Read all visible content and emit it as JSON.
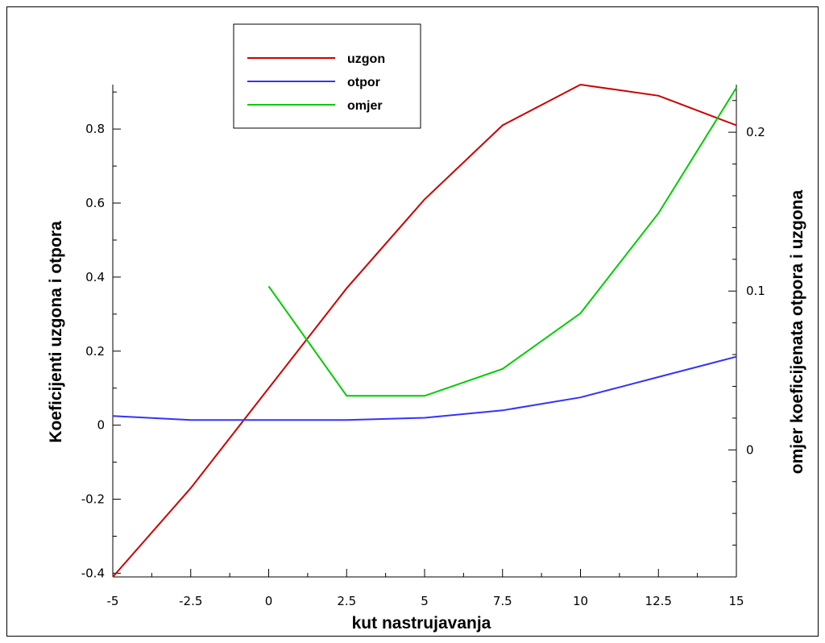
{
  "chart_data": {
    "type": "line",
    "xlabel": "kut nastrujavanja",
    "ylabel": "Koeficijenti uzgona i otpora",
    "y2label": "omjer koeficijenata otpora i uzgona",
    "xlim": [
      -5,
      15
    ],
    "ylim": [
      -0.41,
      0.92
    ],
    "y2lim": [
      -0.08,
      0.23
    ],
    "xticks": [
      -5,
      -2.5,
      0,
      2.5,
      5,
      7.5,
      10,
      12.5,
      15
    ],
    "xtick_labels": [
      "-5",
      "-2.5",
      "0",
      "2.5",
      "5",
      "7.5",
      "10",
      "12.5",
      "15"
    ],
    "yticks": [
      -0.4,
      -0.2,
      0,
      0.2,
      0.4,
      0.6,
      0.8
    ],
    "ytick_labels": [
      "-0.4",
      "-0.2",
      "0",
      "0.2",
      "0.4",
      "0.6",
      "0.8"
    ],
    "y2ticks": [
      0,
      0.1,
      0.2
    ],
    "y2tick_labels": [
      "0",
      "0.1",
      "0.2"
    ],
    "legend_position": "top-left",
    "grid": false,
    "series": [
      {
        "name": "uzgon",
        "color": "#cc0000",
        "axis": "left",
        "x": [
          -5,
          -2.5,
          0,
          2.5,
          5,
          7.5,
          10,
          12.5,
          15
        ],
        "values": [
          -0.41,
          -0.17,
          0.1,
          0.37,
          0.61,
          0.81,
          0.92,
          0.89,
          0.81
        ]
      },
      {
        "name": "otpor",
        "color": "#3333ff",
        "axis": "left",
        "x": [
          -5,
          -2.5,
          0,
          2.5,
          5,
          7.5,
          10,
          12.5,
          15
        ],
        "values": [
          0.025,
          0.014,
          0.014,
          0.014,
          0.02,
          0.04,
          0.075,
          0.13,
          0.185
        ]
      },
      {
        "name": "omjer",
        "color": "#00cc00",
        "axis": "right",
        "x": [
          0,
          2.5,
          5,
          7.5,
          10,
          12.5,
          15
        ],
        "values": [
          0.103,
          0.034,
          0.034,
          0.051,
          0.086,
          0.149,
          0.228
        ]
      }
    ]
  }
}
